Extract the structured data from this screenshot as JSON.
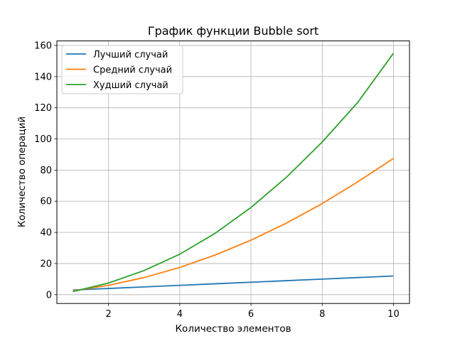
{
  "chart_data": {
    "type": "line",
    "title": "График функции Bubble sort",
    "xlabel": "Количество элементов",
    "ylabel": "Количество операций",
    "xlim": [
      0.55,
      10.45
    ],
    "ylim": [
      -5.65,
      162.9
    ],
    "xticks": [
      2,
      4,
      6,
      8,
      10
    ],
    "yticks": [
      0,
      20,
      40,
      60,
      80,
      100,
      120,
      140,
      160
    ],
    "grid": true,
    "legend_position": "top-left",
    "x": [
      1,
      2,
      3,
      4,
      5,
      6,
      7,
      8,
      9,
      10
    ],
    "series": [
      {
        "name": "Лучший случай",
        "color": "#1f77b4",
        "values": [
          3,
          4,
          5,
          6,
          7,
          8,
          9,
          10,
          11,
          12
        ]
      },
      {
        "name": "Средний случай",
        "color": "#ff7f0e",
        "values": [
          2.5,
          6,
          11,
          17.5,
          25.5,
          35,
          46,
          58.5,
          72.5,
          87.5
        ]
      },
      {
        "name": "Худший случай",
        "color": "#2ca02c",
        "values": [
          2,
          7.5,
          15.5,
          26,
          39.5,
          56,
          75.5,
          98,
          123.5,
          155
        ]
      }
    ]
  }
}
